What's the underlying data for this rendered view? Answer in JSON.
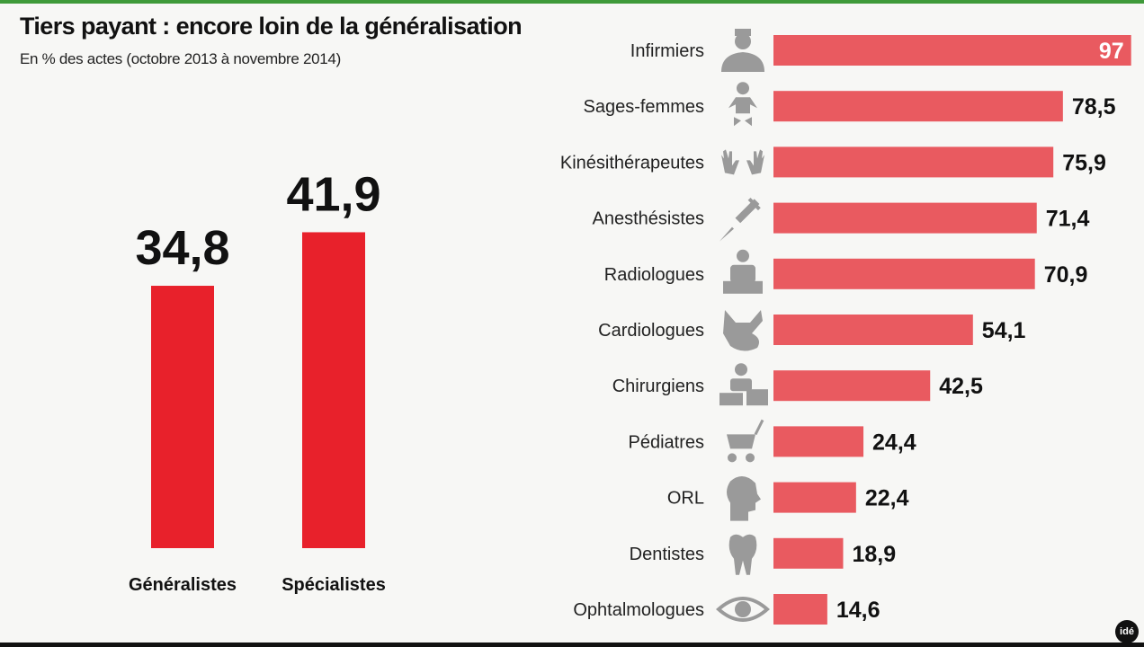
{
  "title": "Tiers payant : encore loin de la généralisation",
  "subtitle": "En % des actes (octobre 2013 à novembre 2014)",
  "logo": "idé",
  "colors": {
    "left_bars": "#e8212b",
    "right_bars": "#e95a60",
    "icons": "#9a9a9a",
    "top_line": "#3f9a3a"
  },
  "chart_data": [
    {
      "type": "bar",
      "orientation": "vertical",
      "categories": [
        "Généralistes",
        "Spécialistes"
      ],
      "values": [
        34.8,
        41.9
      ],
      "value_labels": [
        "34,8",
        "41,9"
      ],
      "ylim": [
        0,
        100
      ],
      "grid": false
    },
    {
      "type": "bar",
      "orientation": "horizontal",
      "categories": [
        "Infirmiers",
        "Sages-femmes",
        "Kinésithérapeutes",
        "Anesthésistes",
        "Radiologues",
        "Cardiologues",
        "Chirurgiens",
        "Pédiatres",
        "ORL",
        "Dentistes",
        "Ophtalmologues"
      ],
      "values": [
        97,
        78.5,
        75.9,
        71.4,
        70.9,
        54.1,
        42.5,
        24.4,
        22.4,
        18.9,
        14.6
      ],
      "value_labels": [
        "97",
        "78,5",
        "75,9",
        "71,4",
        "70,9",
        "54,1",
        "42,5",
        "24,4",
        "22,4",
        "18,9",
        "14,6"
      ],
      "icons": [
        "nurse-icon",
        "baby-icon",
        "hands-icon",
        "syringe-icon",
        "radiology-icon",
        "heart-icon",
        "surgeon-icon",
        "stroller-icon",
        "head-icon",
        "tooth-icon",
        "eye-icon"
      ],
      "xlim": [
        0,
        100
      ],
      "grid": false
    }
  ]
}
